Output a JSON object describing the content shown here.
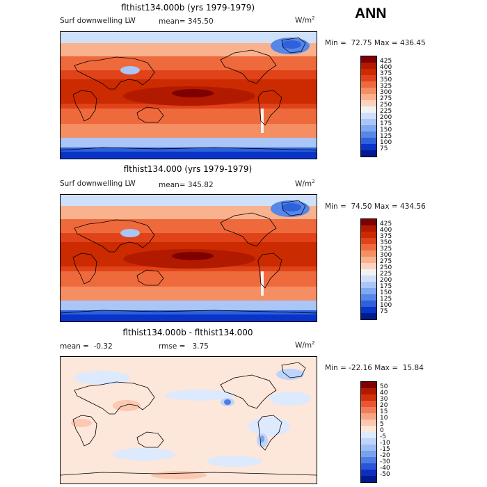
{
  "season": "ANN",
  "panels": [
    {
      "title": "flthist134.000b (yrs 1979-1979)",
      "left_label": "Surf downwelling LW",
      "stat1": "mean= 345.50",
      "stat2": "",
      "units": "W/m",
      "units_sup": "2",
      "minmax": "Min =  72.75 Max = 436.45",
      "levels": [
        "425",
        "400",
        "375",
        "350",
        "325",
        "300",
        "275",
        "250",
        "225",
        "200",
        "175",
        "150",
        "125",
        "100",
        "75"
      ]
    },
    {
      "title": "flthist134.000 (yrs 1979-1979)",
      "left_label": "Surf downwelling LW",
      "stat1": "mean= 345.82",
      "stat2": "",
      "units": "W/m",
      "units_sup": "2",
      "minmax": "Min =  74.50 Max = 434.56",
      "levels": [
        "425",
        "400",
        "375",
        "350",
        "325",
        "300",
        "275",
        "250",
        "225",
        "200",
        "175",
        "150",
        "125",
        "100",
        "75"
      ]
    },
    {
      "title": "flthist134.000b - flthist134.000",
      "left_label": "mean =  -0.32",
      "stat1": "rmse =   3.75",
      "stat2": "",
      "units": "W/m",
      "units_sup": "2",
      "minmax": "Min = -22.16 Max =  15.84",
      "levels": [
        "50",
        "40",
        "30",
        "20",
        "15",
        "10",
        "5",
        "0",
        "-5",
        "-10",
        "-15",
        "-20",
        "-30",
        "-40",
        "-50"
      ]
    }
  ],
  "colors": {
    "abs": [
      "#7f0000",
      "#b21a00",
      "#cc2a00",
      "#e0431a",
      "#ee6a3c",
      "#f58e62",
      "#fab18e",
      "#fdd3bf",
      "#f2f2f2",
      "#cfe0fb",
      "#a9c6f7",
      "#80a8f0",
      "#5686e8",
      "#2e61dc",
      "#0a33c8",
      "#001a90"
    ],
    "diff": [
      "#7f0000",
      "#b21a00",
      "#d2300b",
      "#ea5533",
      "#f37c58",
      "#f8a484",
      "#fcc8b0",
      "#fde6da",
      "#ddeafd",
      "#bdd4fb",
      "#9cbcf6",
      "#7aa1ee",
      "#4e7be4",
      "#2a56d6",
      "#0d2fc0",
      "#001a90"
    ]
  }
}
